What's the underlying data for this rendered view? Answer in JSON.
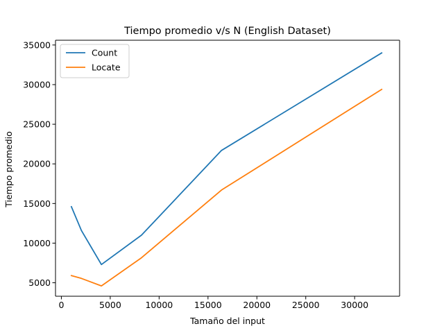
{
  "chart_data": {
    "type": "line",
    "title": "Tiempo promedio v/s N (English Dataset)",
    "xlabel": "Tamaño del input",
    "ylabel": "Tiempo promedio",
    "xlim": [
      -600,
      34600
    ],
    "ylim": [
      3300,
      35600
    ],
    "xticks": [
      0,
      5000,
      10000,
      15000,
      20000,
      25000,
      30000
    ],
    "yticks": [
      5000,
      10000,
      15000,
      20000,
      25000,
      30000,
      35000
    ],
    "grid": false,
    "legend_position": "top-left",
    "series": [
      {
        "name": "Count",
        "color": "#1f77b4",
        "x": [
          1024,
          2048,
          4096,
          8192,
          16384,
          32768
        ],
        "y": [
          14600,
          11600,
          7300,
          11000,
          21700,
          34000
        ]
      },
      {
        "name": "Locate",
        "color": "#ff7f0e",
        "x": [
          1024,
          2048,
          4096,
          8192,
          16384,
          32768
        ],
        "y": [
          5900,
          5550,
          4600,
          8150,
          16700,
          29400
        ]
      }
    ]
  }
}
